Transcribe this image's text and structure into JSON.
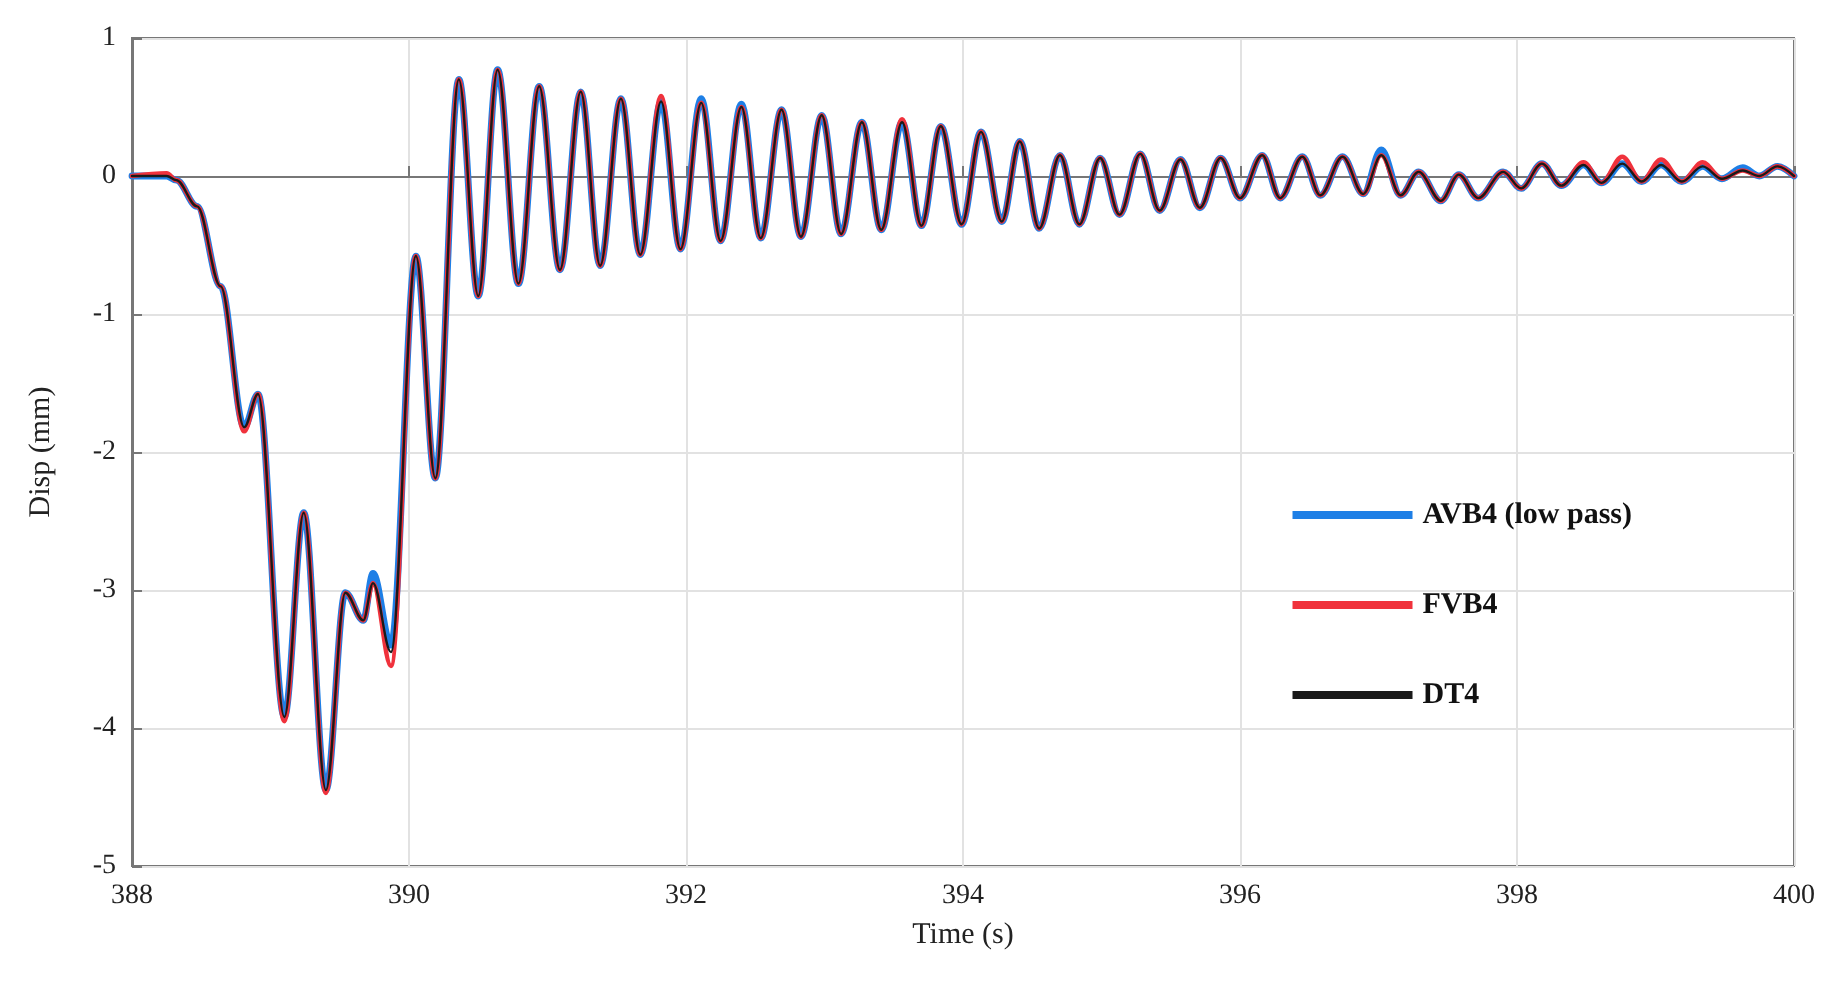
{
  "chart_data": {
    "type": "line",
    "xlabel": "Time (s)",
    "ylabel": "Disp (mm)",
    "x": [
      388,
      388.25,
      388.32,
      388.47,
      388.64,
      388.81,
      388.91,
      389.1,
      389.24,
      389.4,
      389.54,
      389.67,
      389.74,
      389.87,
      390.05,
      390.19,
      390.36,
      390.5,
      390.64,
      390.79,
      390.94,
      391.09,
      391.24,
      391.38,
      391.53,
      391.67,
      391.82,
      391.96,
      392.11,
      392.25,
      392.4,
      392.54,
      392.69,
      392.83,
      392.98,
      393.12,
      393.27,
      393.41,
      393.56,
      393.7,
      393.84,
      393.99,
      394.13,
      394.28,
      394.41,
      394.55,
      394.7,
      394.84,
      394.99,
      395.13,
      395.28,
      395.42,
      395.57,
      395.71,
      395.86,
      396.0,
      396.16,
      396.29,
      396.45,
      396.58,
      396.74,
      396.89,
      397.02,
      397.16,
      397.29,
      397.45,
      397.58,
      397.72,
      397.9,
      398.03,
      398.18,
      398.32,
      398.48,
      398.61,
      398.76,
      398.9,
      399.04,
      399.19,
      399.34,
      399.48,
      399.63,
      399.75,
      399.88,
      400
    ],
    "series": [
      {
        "name": "AVB4 (low pass)",
        "color": "#1e7fe6",
        "values": [
          0,
          0,
          -0.03,
          -0.22,
          -0.8,
          -1.82,
          -1.58,
          -3.92,
          -2.44,
          -4.45,
          -3.02,
          -3.22,
          -2.88,
          -3.4,
          -0.58,
          -2.19,
          0.7,
          -0.87,
          0.77,
          -0.78,
          0.65,
          -0.68,
          0.61,
          -0.65,
          0.56,
          -0.57,
          0.54,
          -0.53,
          0.56,
          -0.47,
          0.52,
          -0.45,
          0.48,
          -0.44,
          0.44,
          -0.42,
          0.39,
          -0.39,
          0.39,
          -0.36,
          0.36,
          -0.35,
          0.32,
          -0.33,
          0.25,
          -0.38,
          0.15,
          -0.35,
          0.13,
          -0.28,
          0.16,
          -0.25,
          0.12,
          -0.23,
          0.13,
          -0.16,
          0.15,
          -0.16,
          0.14,
          -0.14,
          0.14,
          -0.13,
          0.19,
          -0.14,
          0.03,
          -0.18,
          0.01,
          -0.16,
          0.03,
          -0.09,
          0.09,
          -0.07,
          0.08,
          -0.05,
          0.09,
          -0.04,
          0.08,
          -0.04,
          0.07,
          -0.02,
          0.06,
          0,
          0.07,
          0
        ]
      },
      {
        "name": "FVB4",
        "color": "#f0323c",
        "values": [
          0,
          0.02,
          -0.03,
          -0.22,
          -0.8,
          -1.85,
          -1.58,
          -3.95,
          -2.44,
          -4.47,
          -3.02,
          -3.22,
          -2.95,
          -3.55,
          -0.58,
          -2.19,
          0.7,
          -0.87,
          0.77,
          -0.78,
          0.65,
          -0.68,
          0.61,
          -0.65,
          0.56,
          -0.57,
          0.58,
          -0.53,
          0.53,
          -0.47,
          0.5,
          -0.45,
          0.48,
          -0.44,
          0.44,
          -0.42,
          0.39,
          -0.39,
          0.41,
          -0.36,
          0.36,
          -0.35,
          0.32,
          -0.33,
          0.25,
          -0.38,
          0.15,
          -0.35,
          0.13,
          -0.28,
          0.16,
          -0.25,
          0.12,
          -0.23,
          0.13,
          -0.16,
          0.15,
          -0.16,
          0.14,
          -0.14,
          0.14,
          -0.13,
          0.15,
          -0.14,
          0.03,
          -0.18,
          0.01,
          -0.16,
          0.03,
          -0.09,
          0.09,
          -0.07,
          0.1,
          -0.05,
          0.14,
          -0.04,
          0.12,
          -0.04,
          0.1,
          -0.02,
          0.04,
          0,
          0.07,
          0
        ]
      },
      {
        "name": "DT4",
        "color": "#1a1a1a",
        "values": [
          0,
          0,
          -0.03,
          -0.22,
          -0.8,
          -1.82,
          -1.58,
          -3.92,
          -2.44,
          -4.45,
          -3.02,
          -3.22,
          -2.95,
          -3.45,
          -0.58,
          -2.19,
          0.7,
          -0.87,
          0.77,
          -0.78,
          0.65,
          -0.68,
          0.61,
          -0.65,
          0.56,
          -0.57,
          0.54,
          -0.53,
          0.53,
          -0.47,
          0.5,
          -0.45,
          0.48,
          -0.44,
          0.44,
          -0.42,
          0.39,
          -0.39,
          0.39,
          -0.36,
          0.36,
          -0.35,
          0.32,
          -0.33,
          0.25,
          -0.38,
          0.15,
          -0.35,
          0.13,
          -0.28,
          0.16,
          -0.25,
          0.12,
          -0.23,
          0.13,
          -0.16,
          0.15,
          -0.16,
          0.14,
          -0.14,
          0.14,
          -0.13,
          0.15,
          -0.14,
          0.03,
          -0.18,
          0.01,
          -0.16,
          0.03,
          -0.09,
          0.09,
          -0.07,
          0.08,
          -0.05,
          0.09,
          -0.04,
          0.08,
          -0.04,
          0.07,
          -0.02,
          0.04,
          0,
          0.07,
          0
        ]
      }
    ],
    "xlim": [
      388,
      400
    ],
    "xticks": [
      388,
      390,
      392,
      394,
      396,
      398,
      400
    ],
    "ylim": [
      -5,
      1
    ],
    "yticks": [
      -5,
      -4,
      -3,
      -2,
      -1,
      0,
      1
    ],
    "grid": true,
    "legend": "right",
    "marker": "none",
    "line_style": "solid"
  }
}
